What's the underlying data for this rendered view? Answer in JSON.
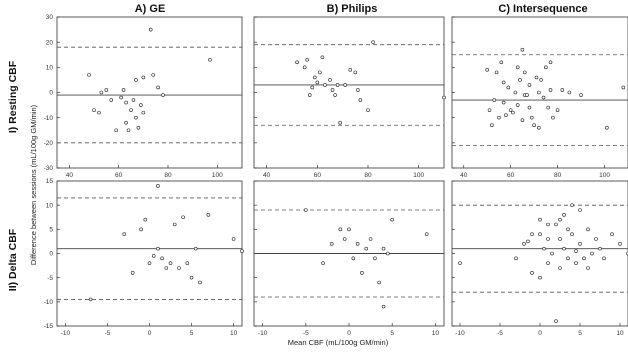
{
  "chart_data": {
    "type": "scatter",
    "column_titles": [
      "A) GE",
      "B) Philips",
      "C) Intersequence"
    ],
    "row_titles": [
      "I) Resting CBF",
      "II) Delta CBF"
    ],
    "ylabel": "Difference between sessions (mL/100g GM/min)",
    "xlabel": "Mean CBF (mL/100g GM/min)",
    "rows": [
      {
        "x_range": [
          35,
          110
        ],
        "y_range": [
          -30,
          30
        ],
        "x_ticks": [
          40,
          60,
          80,
          100
        ],
        "y_ticks": [
          -30,
          -20,
          -10,
          0,
          10,
          20,
          30
        ],
        "panels": [
          {
            "mean_line": -1,
            "upper_loa": 18,
            "lower_loa": -20,
            "points": [
              [
                48,
                7
              ],
              [
                50,
                -7
              ],
              [
                52,
                -8
              ],
              [
                53,
                0
              ],
              [
                55,
                1
              ],
              [
                57,
                -3
              ],
              [
                59,
                -15
              ],
              [
                61,
                -2
              ],
              [
                62,
                1
              ],
              [
                63,
                -4
              ],
              [
                63,
                -12
              ],
              [
                64,
                -15
              ],
              [
                65,
                -7
              ],
              [
                66,
                -3
              ],
              [
                67,
                -10
              ],
              [
                67,
                5
              ],
              [
                68,
                -14
              ],
              [
                69,
                -5
              ],
              [
                70,
                6
              ],
              [
                70,
                -8
              ],
              [
                73,
                25
              ],
              [
                74,
                7
              ],
              [
                76,
                2
              ],
              [
                78,
                -1
              ],
              [
                97,
                13
              ]
            ]
          },
          {
            "mean_line": 3,
            "upper_loa": 19,
            "lower_loa": -13,
            "points": [
              [
                52,
                12
              ],
              [
                55,
                10
              ],
              [
                56,
                13
              ],
              [
                57,
                -1
              ],
              [
                58,
                2
              ],
              [
                59,
                6
              ],
              [
                60,
                4
              ],
              [
                61,
                8
              ],
              [
                62,
                14
              ],
              [
                63,
                3
              ],
              [
                65,
                5
              ],
              [
                66,
                1
              ],
              [
                67,
                -1
              ],
              [
                68,
                3
              ],
              [
                69,
                -12
              ],
              [
                71,
                3
              ],
              [
                73,
                9
              ],
              [
                75,
                8
              ],
              [
                76,
                1
              ],
              [
                77,
                -3
              ],
              [
                80,
                -7
              ],
              [
                82,
                20
              ],
              [
                110,
                -2
              ]
            ]
          },
          {
            "mean_line": -3,
            "upper_loa": 15,
            "lower_loa": -21,
            "points": [
              [
                50,
                9
              ],
              [
                51,
                -7
              ],
              [
                52,
                -13
              ],
              [
                53,
                -3
              ],
              [
                54,
                8
              ],
              [
                55,
                -10
              ],
              [
                56,
                12
              ],
              [
                57,
                -4
              ],
              [
                57,
                4
              ],
              [
                58,
                -9
              ],
              [
                59,
                2
              ],
              [
                60,
                -7
              ],
              [
                61,
                -8
              ],
              [
                62,
                0
              ],
              [
                63,
                10
              ],
              [
                63,
                -5
              ],
              [
                64,
                5
              ],
              [
                65,
                -11
              ],
              [
                65,
                17
              ],
              [
                66,
                -1
              ],
              [
                66,
                8
              ],
              [
                67,
                -1
              ],
              [
                68,
                3
              ],
              [
                68,
                -6
              ],
              [
                69,
                -10
              ],
              [
                70,
                -13
              ],
              [
                71,
                6
              ],
              [
                72,
                0
              ],
              [
                72,
                -14
              ],
              [
                73,
                5
              ],
              [
                74,
                -2
              ],
              [
                75,
                10
              ],
              [
                76,
                -6
              ],
              [
                77,
                1
              ],
              [
                77,
                12
              ],
              [
                78,
                -10
              ],
              [
                80,
                -7
              ],
              [
                82,
                1
              ],
              [
                85,
                0
              ],
              [
                90,
                -1
              ],
              [
                101,
                -14
              ],
              [
                108,
                2
              ]
            ]
          }
        ]
      },
      {
        "x_range": [
          -11,
          11
        ],
        "y_range": [
          -15,
          15
        ],
        "x_ticks": [
          -10,
          -5,
          0,
          5,
          10
        ],
        "y_ticks": [
          -15,
          -10,
          -5,
          0,
          5,
          10,
          15
        ],
        "panels": [
          {
            "mean_line": 1,
            "upper_loa": 11.5,
            "lower_loa": -9.5,
            "points": [
              [
                -7,
                -9.5
              ],
              [
                -3,
                4
              ],
              [
                -2,
                -4
              ],
              [
                -1,
                5
              ],
              [
                -0.5,
                7
              ],
              [
                0,
                -2
              ],
              [
                0.5,
                -0.5
              ],
              [
                1,
                1
              ],
              [
                1,
                14
              ],
              [
                1.5,
                -1
              ],
              [
                2,
                -3
              ],
              [
                2.5,
                -2
              ],
              [
                3,
                6
              ],
              [
                3.5,
                -3
              ],
              [
                4,
                7.5
              ],
              [
                4.5,
                -2
              ],
              [
                5,
                -5
              ],
              [
                5.5,
                1
              ],
              [
                6,
                -6
              ],
              [
                7,
                8
              ],
              [
                10,
                3
              ],
              [
                11,
                0.5
              ]
            ]
          },
          {
            "mean_line": 0,
            "upper_loa": 9,
            "lower_loa": -9,
            "points": [
              [
                -5,
                9
              ],
              [
                -3,
                -2
              ],
              [
                -2,
                2
              ],
              [
                -1,
                5
              ],
              [
                -0.5,
                3
              ],
              [
                0,
                5
              ],
              [
                0.5,
                -1
              ],
              [
                1,
                2
              ],
              [
                1.5,
                -4
              ],
              [
                2,
                1
              ],
              [
                2.5,
                3
              ],
              [
                3,
                -1
              ],
              [
                3.5,
                -6
              ],
              [
                4,
                -11
              ],
              [
                4,
                1
              ],
              [
                4.5,
                0
              ],
              [
                5,
                7
              ],
              [
                9,
                4
              ]
            ]
          },
          {
            "mean_line": 1,
            "upper_loa": 10,
            "lower_loa": -8,
            "points": [
              [
                -10,
                -2
              ],
              [
                -3,
                -1
              ],
              [
                -2,
                2
              ],
              [
                -1,
                4
              ],
              [
                -1,
                -4
              ],
              [
                0,
                -5
              ],
              [
                0,
                7
              ],
              [
                0.5,
                1
              ],
              [
                1,
                3
              ],
              [
                1,
                -2
              ],
              [
                1.5,
                0
              ],
              [
                2,
                6
              ],
              [
                2,
                -14
              ],
              [
                2.5,
                3
              ],
              [
                2.5,
                -3
              ],
              [
                3,
                8
              ],
              [
                3,
                1
              ],
              [
                3.5,
                -1
              ],
              [
                4,
                10
              ],
              [
                4,
                4
              ],
              [
                4.5,
                -2
              ],
              [
                5,
                2
              ],
              [
                5,
                9
              ],
              [
                5.5,
                -1
              ],
              [
                6,
                5
              ],
              [
                6.5,
                0
              ],
              [
                7,
                3
              ],
              [
                7.5,
                1
              ],
              [
                8,
                -1
              ],
              [
                9,
                4
              ],
              [
                10,
                2
              ],
              [
                11,
                0
              ],
              [
                0,
                4
              ],
              [
                1,
                6
              ],
              [
                2.5,
                7
              ],
              [
                3.5,
                5
              ],
              [
                4.5,
                0.5
              ],
              [
                -1.5,
                2.5
              ],
              [
                6,
                -3
              ]
            ]
          }
        ]
      }
    ]
  }
}
